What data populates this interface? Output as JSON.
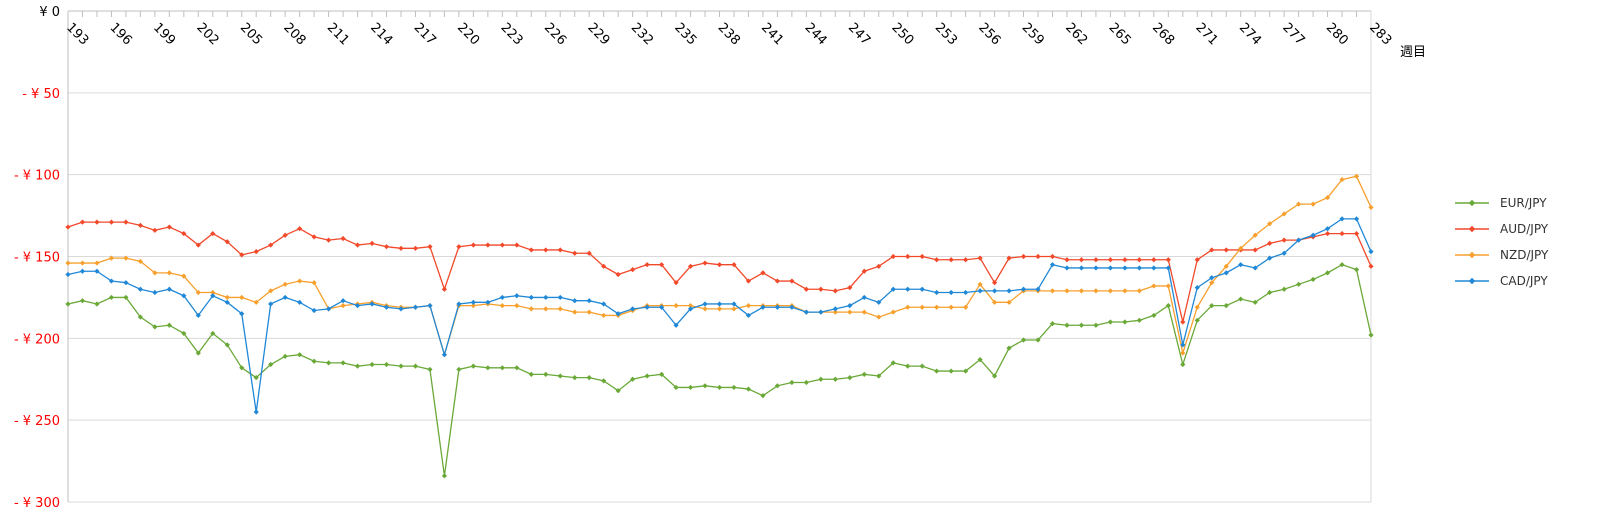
{
  "chart_data": {
    "type": "line",
    "xunit_label": "週目",
    "ylim": [
      -300,
      0
    ],
    "x_start": 193,
    "x_end": 283,
    "x_tick_step": 3,
    "y_ticks": [
      {
        "value": 0,
        "label": "¥ 0",
        "color": "#000000"
      },
      {
        "value": -50,
        "label": "- ¥ 50",
        "color": "#ff0000"
      },
      {
        "value": -100,
        "label": "- ¥ 100",
        "color": "#ff0000"
      },
      {
        "value": -150,
        "label": "- ¥ 150",
        "color": "#ff0000"
      },
      {
        "value": -200,
        "label": "- ¥ 200",
        "color": "#ff0000"
      },
      {
        "value": -250,
        "label": "- ¥ 250",
        "color": "#ff0000"
      },
      {
        "value": -300,
        "label": "- ¥ 300",
        "color": "#ff0000"
      }
    ],
    "grid": true,
    "legend_position": "right",
    "series": [
      {
        "name": "EUR/JPY",
        "color": "#6aa938",
        "values": [
          -179,
          -177,
          -179,
          -175,
          -175,
          -187,
          -193,
          -192,
          -197,
          -209,
          -197,
          -204,
          -218,
          -224,
          -216,
          -211,
          -210,
          -214,
          -215,
          -215,
          -217,
          -216,
          -216,
          -217,
          -217,
          -219,
          -284,
          -219,
          -217,
          -218,
          -218,
          -218,
          -222,
          -222,
          -223,
          -224,
          -224,
          -226,
          -232,
          -225,
          -223,
          -222,
          -230,
          -230,
          -229,
          -230,
          -230,
          -231,
          -235,
          -229,
          -227,
          -227,
          -225,
          -225,
          -224,
          -222,
          -223,
          -215,
          -217,
          -217,
          -220,
          -220,
          -220,
          -213,
          -223,
          -206,
          -201,
          -201,
          -191,
          -192,
          -192,
          -192,
          -190,
          -190,
          -189,
          -186,
          -180,
          -216,
          -189,
          -180,
          -180,
          -176,
          -178,
          -172,
          -170,
          -167,
          -164,
          -160,
          -155,
          -158,
          -198
        ]
      },
      {
        "name": "AUD/JPY",
        "color": "#f2492a",
        "values": [
          -132,
          -129,
          -129,
          -129,
          -129,
          -131,
          -134,
          -132,
          -136,
          -143,
          -136,
          -141,
          -149,
          -147,
          -143,
          -137,
          -133,
          -138,
          -140,
          -139,
          -143,
          -142,
          -144,
          -145,
          -145,
          -144,
          -170,
          -144,
          -143,
          -143,
          -143,
          -143,
          -146,
          -146,
          -146,
          -148,
          -148,
          -156,
          -161,
          -158,
          -155,
          -155,
          -166,
          -156,
          -154,
          -155,
          -155,
          -165,
          -160,
          -165,
          -165,
          -170,
          -170,
          -171,
          -169,
          -159,
          -156,
          -150,
          -150,
          -150,
          -152,
          -152,
          -152,
          -151,
          -166,
          -151,
          -150,
          -150,
          -150,
          -152,
          -152,
          -152,
          -152,
          -152,
          -152,
          -152,
          -152,
          -190,
          -152,
          -146,
          -146,
          -146,
          -146,
          -142,
          -140,
          -140,
          -138,
          -136,
          -136,
          -136,
          -156
        ]
      },
      {
        "name": "NZD/JPY",
        "color": "#f7a02d",
        "values": [
          -154,
          -154,
          -154,
          -151,
          -151,
          -153,
          -160,
          -160,
          -162,
          -172,
          -172,
          -175,
          -175,
          -178,
          -171,
          -167,
          -165,
          -166,
          -182,
          -180,
          -179,
          -178,
          -180,
          -181,
          -181,
          -180,
          -210,
          -180,
          -180,
          -179,
          -180,
          -180,
          -182,
          -182,
          -182,
          -184,
          -184,
          -186,
          -186,
          -183,
          -180,
          -180,
          -180,
          -180,
          -182,
          -182,
          -182,
          -180,
          -180,
          -180,
          -180,
          -184,
          -184,
          -184,
          -184,
          -184,
          -187,
          -184,
          -181,
          -181,
          -181,
          -181,
          -181,
          -167,
          -178,
          -178,
          -171,
          -171,
          -171,
          -171,
          -171,
          -171,
          -171,
          -171,
          -171,
          -168,
          -168,
          -209,
          -181,
          -166,
          -156,
          -145,
          -137,
          -130,
          -124,
          -118,
          -118,
          -114,
          -103,
          -101,
          -120
        ]
      },
      {
        "name": "CAD/JPY",
        "color": "#2088d6",
        "values": [
          -161,
          -159,
          -159,
          -165,
          -166,
          -170,
          -172,
          -170,
          -174,
          -186,
          -174,
          -178,
          -185,
          -245,
          -179,
          -175,
          -178,
          -183,
          -182,
          -177,
          -180,
          -179,
          -181,
          -182,
          -181,
          -180,
          -210,
          -179,
          -178,
          -178,
          -175,
          -174,
          -175,
          -175,
          -175,
          -177,
          -177,
          -179,
          -185,
          -182,
          -181,
          -181,
          -192,
          -182,
          -179,
          -179,
          -179,
          -186,
          -181,
          -181,
          -181,
          -184,
          -184,
          -182,
          -180,
          -175,
          -178,
          -170,
          -170,
          -170,
          -172,
          -172,
          -172,
          -171,
          -171,
          -171,
          -170,
          -170,
          -155,
          -157,
          -157,
          -157,
          -157,
          -157,
          -157,
          -157,
          -157,
          -204,
          -169,
          -163,
          -160,
          -155,
          -157,
          -151,
          -148,
          -140,
          -137,
          -133,
          -127,
          -127,
          -147
        ]
      }
    ]
  }
}
